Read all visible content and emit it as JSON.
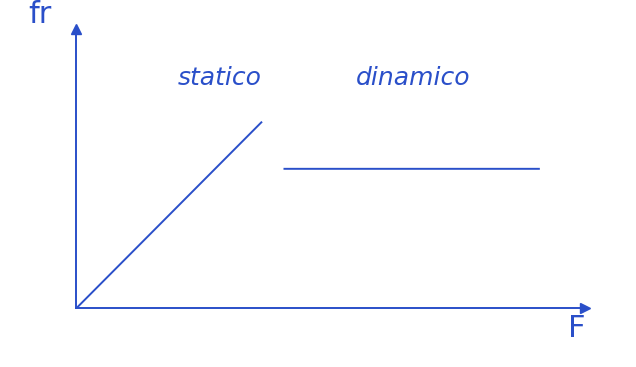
{
  "chart_data": {
    "type": "line",
    "x_label": "F",
    "y_label": "fr",
    "annotations": [
      "statico",
      "dinamico"
    ],
    "x": [
      0,
      4,
      4.25,
      4.5,
      10
    ],
    "values": [
      0,
      4,
      null,
      3,
      3
    ],
    "color": "#2a4fc9",
    "xlim": [
      0,
      11
    ],
    "ylim": [
      0,
      6
    ],
    "xticks": [],
    "yticks": [],
    "tick_labels": false,
    "grid": false
  }
}
